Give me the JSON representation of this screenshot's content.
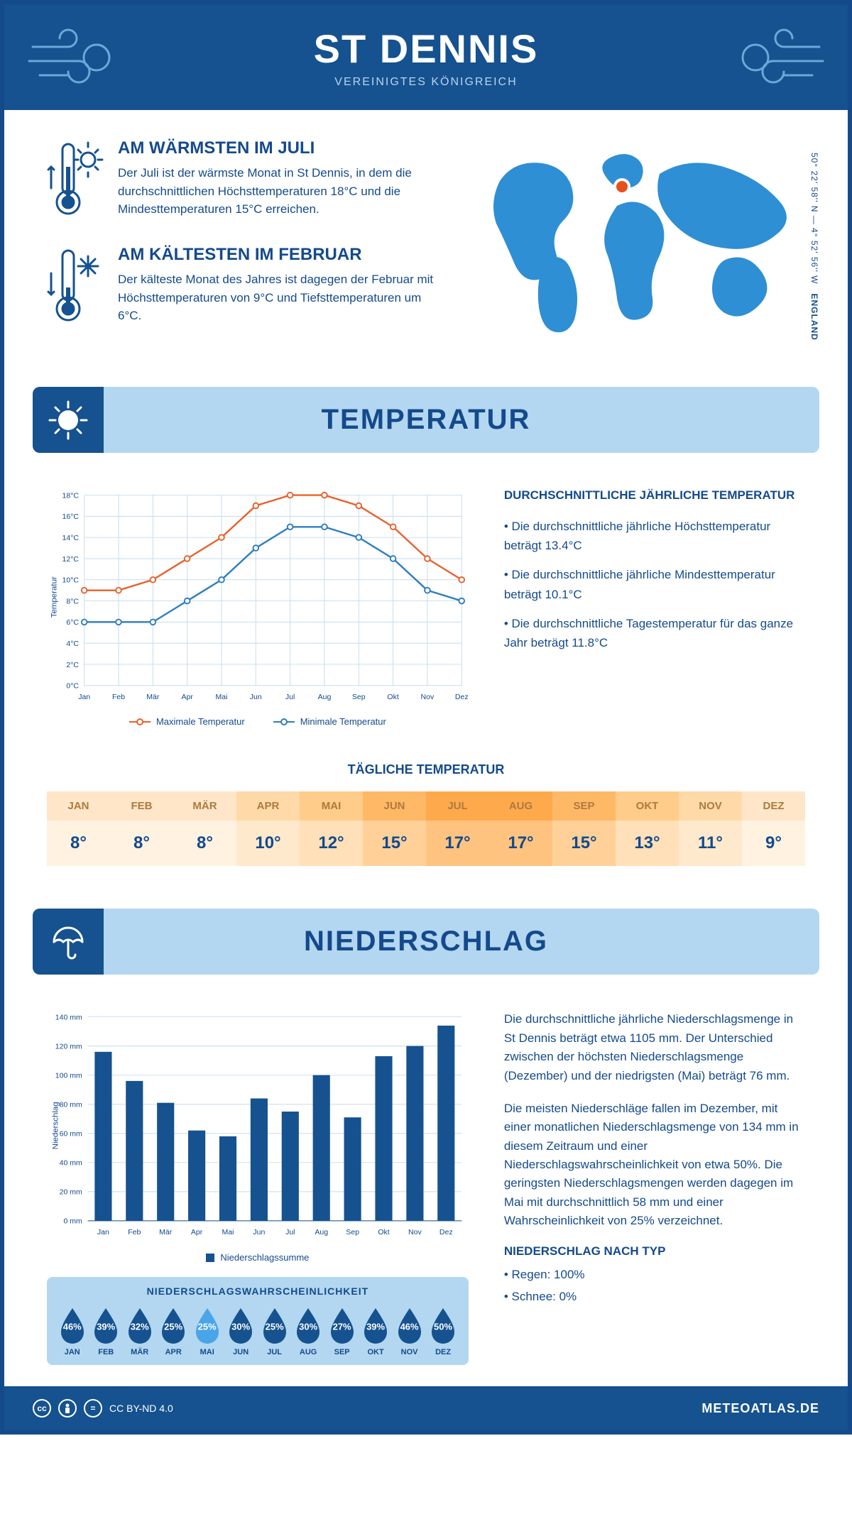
{
  "header": {
    "title": "ST DENNIS",
    "subtitle": "VEREINIGTES KÖNIGREICH"
  },
  "coords": {
    "text": "50° 22' 58'' N — 4° 52' 56'' W",
    "region": "ENGLAND"
  },
  "intro": {
    "warm": {
      "title": "AM WÄRMSTEN IM JULI",
      "text": "Der Juli ist der wärmste Monat in St Dennis, in dem die durchschnittlichen Höchsttemperaturen 18°C und die Mindesttemperaturen 15°C erreichen."
    },
    "cold": {
      "title": "AM KÄLTESTEN IM FEBRUAR",
      "text": "Der kälteste Monat des Jahres ist dagegen der Februar mit Höchsttemperaturen von 9°C und Tiefsttemperaturen um 6°C."
    }
  },
  "sections": {
    "temp": "TEMPERATUR",
    "precip": "NIEDERSCHLAG"
  },
  "months": [
    "Jan",
    "Feb",
    "Mär",
    "Apr",
    "Mai",
    "Jun",
    "Jul",
    "Aug",
    "Sep",
    "Okt",
    "Nov",
    "Dez"
  ],
  "months_upper": [
    "JAN",
    "FEB",
    "MÄR",
    "APR",
    "MAI",
    "JUN",
    "JUL",
    "AUG",
    "SEP",
    "OKT",
    "NOV",
    "DEZ"
  ],
  "temp_chart": {
    "type": "line",
    "ylabel": "Temperatur",
    "ylim": [
      0,
      18
    ],
    "ytick_step": 2,
    "ytick_suffix": "°C",
    "max_color": "#e8622c",
    "min_color": "#2e7dc1",
    "max": [
      9,
      9,
      10,
      12,
      14,
      17,
      18,
      18,
      17,
      15,
      12,
      10
    ],
    "min": [
      6,
      6,
      6,
      8,
      10,
      13,
      15,
      15,
      14,
      12,
      9,
      8
    ],
    "grid_color": "#c5dced",
    "legend_max": "Maximale Temperatur",
    "legend_min": "Minimale Temperatur"
  },
  "temp_info": {
    "heading": "DURCHSCHNITTLICHE JÄHRLICHE TEMPERATUR",
    "b1": "• Die durchschnittliche jährliche Höchsttemperatur beträgt 13.4°C",
    "b2": "• Die durchschnittliche jährliche Mindesttemperatur beträgt 10.1°C",
    "b3": "• Die durchschnittliche Tagestemperatur für das ganze Jahr beträgt 11.8°C"
  },
  "daily_temp": {
    "heading": "TÄGLICHE TEMPERATUR",
    "values": [
      "8°",
      "8°",
      "8°",
      "10°",
      "12°",
      "15°",
      "17°",
      "17°",
      "15°",
      "13°",
      "11°",
      "9°"
    ],
    "head_colors": [
      "#ffe6c8",
      "#ffe6c8",
      "#ffe6c8",
      "#ffd9a8",
      "#ffcc8a",
      "#ffb866",
      "#ffa94d",
      "#ffa94d",
      "#ffb866",
      "#ffcc8a",
      "#ffd9a8",
      "#ffe6c8"
    ],
    "val_colors": [
      "#fff2e0",
      "#fff2e0",
      "#fff2e0",
      "#ffe9cc",
      "#ffe0b8",
      "#ffd199",
      "#ffc380",
      "#ffc380",
      "#ffd199",
      "#ffe0b8",
      "#ffe9cc",
      "#fff2e0"
    ]
  },
  "precip_chart": {
    "type": "bar",
    "ylabel": "Niederschlag",
    "ylim": [
      0,
      140
    ],
    "ytick_step": 20,
    "ytick_suffix": " mm",
    "values": [
      116,
      96,
      81,
      62,
      58,
      84,
      75,
      100,
      71,
      113,
      120,
      134
    ],
    "bar_color": "#15528f",
    "legend": "Niederschlagssumme"
  },
  "precip_text": {
    "p1": "Die durchschnittliche jährliche Niederschlagsmenge in St Dennis beträgt etwa 1105 mm. Der Unterschied zwischen der höchsten Niederschlagsmenge (Dezember) und der niedrigsten (Mai) beträgt 76 mm.",
    "p2": "Die meisten Niederschläge fallen im Dezember, mit einer monatlichen Niederschlagsmenge von 134 mm in diesem Zeitraum und einer Niederschlagswahrscheinlichkeit von etwa 50%. Die geringsten Niederschlagsmengen werden dagegen im Mai mit durchschnittlich 58 mm und einer Wahrscheinlichkeit von 25% verzeichnet.",
    "type_heading": "NIEDERSCHLAG NACH TYP",
    "type_rain": "• Regen: 100%",
    "type_snow": "• Schnee: 0%"
  },
  "precip_prob": {
    "heading": "NIEDERSCHLAGSWAHRSCHEINLICHKEIT",
    "values": [
      "46%",
      "39%",
      "32%",
      "25%",
      "25%",
      "30%",
      "25%",
      "30%",
      "27%",
      "39%",
      "46%",
      "50%"
    ],
    "fill": [
      "#15528f",
      "#15528f",
      "#15528f",
      "#15528f",
      "#4aa5e8",
      "#15528f",
      "#15528f",
      "#15528f",
      "#15528f",
      "#15528f",
      "#15528f",
      "#15528f"
    ]
  },
  "footer": {
    "license": "CC BY-ND 4.0",
    "site": "METEOATLAS.DE"
  },
  "colors": {
    "primary": "#15528f",
    "light": "#b3d7f0",
    "map": "#2e8fd4",
    "marker": "#e84f1c"
  }
}
